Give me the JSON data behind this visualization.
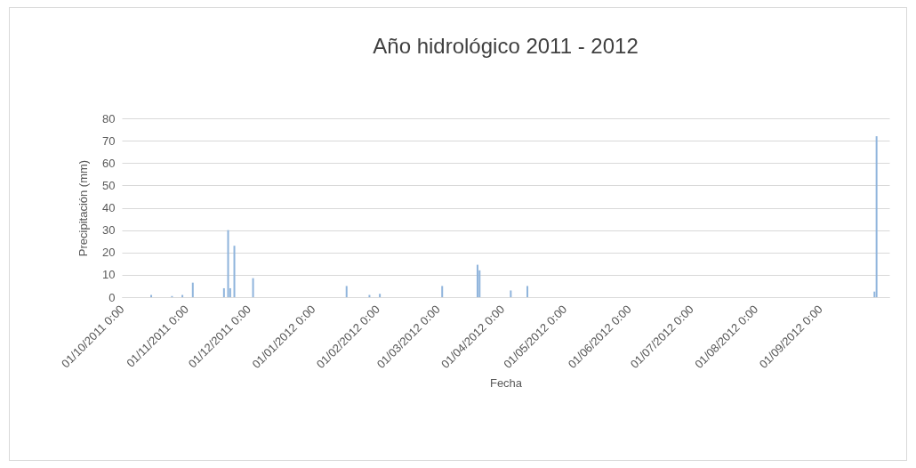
{
  "chart_data": {
    "type": "bar",
    "title": "Año hidrológico 2011 - 2012",
    "xlabel": "Fecha",
    "ylabel": "Precipitación (mm)",
    "x": [
      "2011-10-13",
      "2011-10-23",
      "2011-10-28",
      "2011-11-02",
      "2011-11-17",
      "2011-11-19",
      "2011-11-20",
      "2011-11-22",
      "2011-12-01",
      "2012-01-15",
      "2012-01-26",
      "2012-01-31",
      "2012-03-01",
      "2012-03-18",
      "2012-03-19",
      "2012-04-03",
      "2012-04-11",
      "2012-09-25",
      "2012-09-26"
    ],
    "series": [
      {
        "color": "#8fb4dc",
        "values": [
          1,
          0.5,
          1,
          6.5,
          4,
          30,
          4,
          23,
          8.5,
          5,
          1,
          1.5,
          5,
          14.5,
          12,
          3,
          5,
          2.5,
          72
        ]
      }
    ],
    "xlim": [
      "2011-10-01",
      "2012-09-30"
    ],
    "xticks": [
      {
        "value": "2011-10-01",
        "label": "01/10/2011 0:00"
      },
      {
        "value": "2011-11-01",
        "label": "01/11/2011 0:00"
      },
      {
        "value": "2011-12-01",
        "label": "01/12/2011 0:00"
      },
      {
        "value": "2012-01-01",
        "label": "01/01/2012 0:00"
      },
      {
        "value": "2012-02-01",
        "label": "01/02/2012 0:00"
      },
      {
        "value": "2012-03-01",
        "label": "01/03/2012 0:00"
      },
      {
        "value": "2012-04-01",
        "label": "01/04/2012 0:00"
      },
      {
        "value": "2012-05-01",
        "label": "01/05/2012 0:00"
      },
      {
        "value": "2012-06-01",
        "label": "01/06/2012 0:00"
      },
      {
        "value": "2012-07-01",
        "label": "01/07/2012 0:00"
      },
      {
        "value": "2012-08-01",
        "label": "01/08/2012 0:00"
      },
      {
        "value": "2012-09-01",
        "label": "01/09/2012 0:00"
      }
    ],
    "ylim": [
      0,
      80
    ],
    "yticks": [
      0,
      10,
      20,
      30,
      40,
      50,
      60,
      70,
      80
    ],
    "grid": "y"
  }
}
